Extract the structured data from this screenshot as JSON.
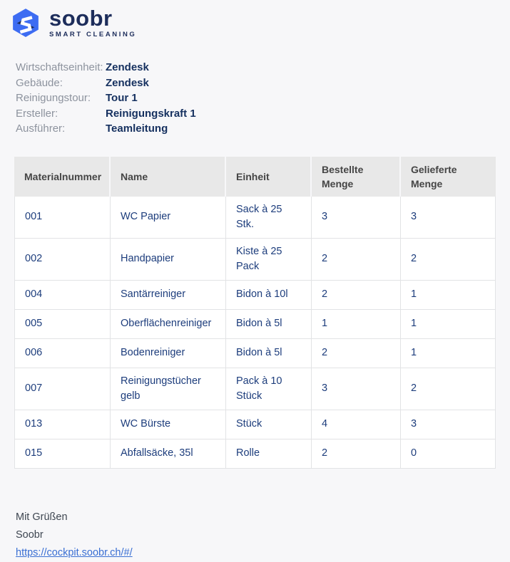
{
  "logo": {
    "brand": "soobr",
    "tagline": "SMART CLEANING"
  },
  "colors": {
    "background": "#f7f7f9",
    "brand_navy": "#1d2d5b",
    "brand_blue": "#3d6cf2",
    "table_text_blue": "#1d3d7c",
    "link_blue": "#3a6fd3",
    "header_gray": "#e8e8e8"
  },
  "meta_fields": [
    {
      "label": "Wirtschaftseinheit:",
      "value": "Zendesk"
    },
    {
      "label": "Gebäude:",
      "value": "Zendesk"
    },
    {
      "label": "Reinigungstour:",
      "value": "Tour 1"
    },
    {
      "label": "Ersteller:",
      "value": "Reinigungskraft 1"
    },
    {
      "label": "Ausführer:",
      "value": "Teamleitung"
    }
  ],
  "table": {
    "headers": [
      "Materialnummer",
      "Name",
      "Einheit",
      "Bestellte Menge",
      "Gelieferte Menge"
    ],
    "rows": [
      [
        "001",
        "WC Papier",
        "Sack à 25 Stk.",
        "3",
        "3"
      ],
      [
        "002",
        "Handpapier",
        "Kiste à 25 Pack",
        "2",
        "2"
      ],
      [
        "004",
        "Santärreiniger",
        "Bidon à 10l",
        "2",
        "1"
      ],
      [
        "005",
        "Oberflächenreiniger",
        "Bidon à 5l",
        "1",
        "1"
      ],
      [
        "006",
        "Bodenreiniger",
        "Bidon à 5l",
        "2",
        "1"
      ],
      [
        "007",
        "Reinigungstücher gelb",
        "Pack à 10 Stück",
        "3",
        "2"
      ],
      [
        "013",
        "WC Bürste",
        "Stück",
        "4",
        "3"
      ],
      [
        "015",
        "Abfallsäcke, 35l",
        "Rolle",
        "2",
        "0"
      ]
    ]
  },
  "footer": {
    "greeting": "Mit Grüßen",
    "signature": "Soobr",
    "link": "https://cockpit.soobr.ch/#/"
  }
}
